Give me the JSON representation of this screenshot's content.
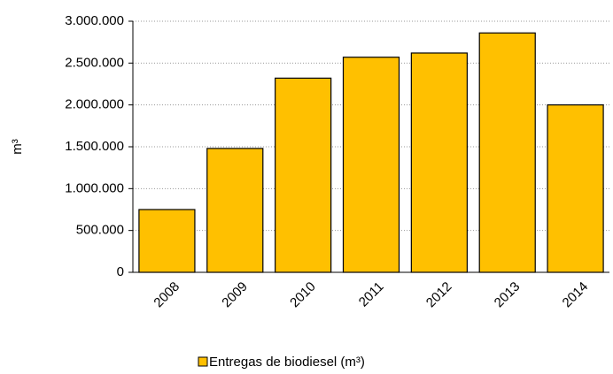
{
  "chart_data": {
    "type": "bar",
    "y_label": "m³",
    "categories": [
      "2008",
      "2009",
      "2010",
      "2011",
      "2012",
      "2013",
      "2014"
    ],
    "series": [
      {
        "name": "Entregas de biodiesel (m³)",
        "color": "#FFC000",
        "values": [
          750000,
          1480000,
          2320000,
          2570000,
          2620000,
          2860000,
          2000000
        ]
      }
    ],
    "ylim": [
      0,
      3000000
    ],
    "yticks": [
      0,
      {
        "value": 500000,
        "label": "500.000"
      },
      {
        "value": 1000000,
        "label": "1.000.000"
      },
      {
        "value": 1500000,
        "label": "1.500.000"
      },
      {
        "value": 2000000,
        "label": "2.000.000"
      },
      {
        "value": 2500000,
        "label": "2.500.000"
      },
      {
        "value": 3000000,
        "label": "3.000.000"
      }
    ],
    "grid": true,
    "legend": "bottom"
  }
}
